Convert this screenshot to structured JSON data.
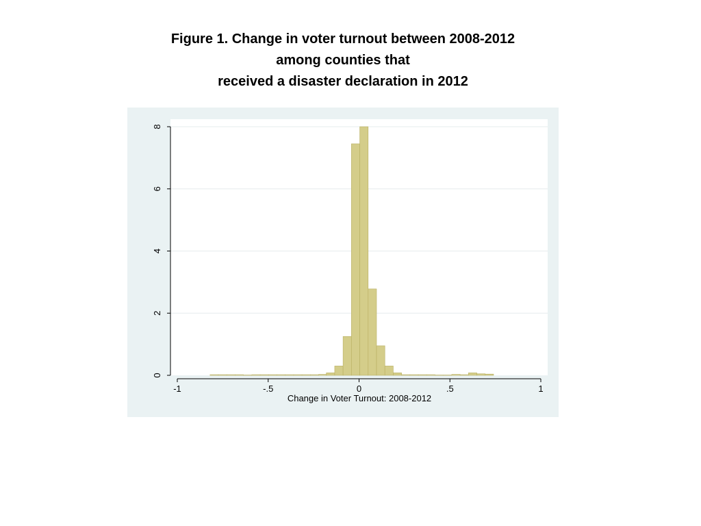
{
  "title_lines": [
    "Figure 1. Change in voter turnout between 2008-2012",
    "among counties that",
    "received a disaster declaration in 2012"
  ],
  "colors": {
    "frame_bg": "#eaf2f3",
    "plot_bg": "#ffffff",
    "bar_fill": "#d4cd8a",
    "bar_stroke": "#b8af62",
    "grid": "#e6eced"
  },
  "chart_data": {
    "type": "bar",
    "title": "Figure 1. Change in voter turnout between 2008-2012 among counties that received a disaster declaration in 2012",
    "xlabel": "Change in Voter Turnout: 2008-2012",
    "ylabel": "",
    "xlim": [
      -1,
      1
    ],
    "ylim": [
      0,
      8
    ],
    "x_ticks": [
      -1,
      -0.5,
      0,
      0.5,
      1
    ],
    "x_tick_labels": [
      "-1",
      "-.5",
      "0",
      ".5",
      "1"
    ],
    "y_ticks": [
      0,
      2,
      4,
      6,
      8
    ],
    "y_tick_labels": [
      "0",
      "2",
      "4",
      "6",
      "8"
    ],
    "grid": true,
    "bin_width": 0.046,
    "bins": [
      {
        "x0": -0.82,
        "value": 0.02
      },
      {
        "x0": -0.774,
        "value": 0.02
      },
      {
        "x0": -0.728,
        "value": 0.02
      },
      {
        "x0": -0.682,
        "value": 0.02
      },
      {
        "x0": -0.636,
        "value": 0.01
      },
      {
        "x0": -0.59,
        "value": 0.02
      },
      {
        "x0": -0.544,
        "value": 0.02
      },
      {
        "x0": -0.498,
        "value": 0.02
      },
      {
        "x0": -0.452,
        "value": 0.02
      },
      {
        "x0": -0.406,
        "value": 0.02
      },
      {
        "x0": -0.36,
        "value": 0.02
      },
      {
        "x0": -0.314,
        "value": 0.02
      },
      {
        "x0": -0.268,
        "value": 0.02
      },
      {
        "x0": -0.222,
        "value": 0.03
      },
      {
        "x0": -0.18,
        "value": 0.08
      },
      {
        "x0": -0.134,
        "value": 0.3
      },
      {
        "x0": -0.088,
        "value": 1.25
      },
      {
        "x0": -0.042,
        "value": 7.45
      },
      {
        "x0": 0.004,
        "value": 8.0
      },
      {
        "x0": 0.05,
        "value": 2.78
      },
      {
        "x0": 0.096,
        "value": 0.95
      },
      {
        "x0": 0.142,
        "value": 0.3
      },
      {
        "x0": 0.188,
        "value": 0.08
      },
      {
        "x0": 0.234,
        "value": 0.02
      },
      {
        "x0": 0.28,
        "value": 0.02
      },
      {
        "x0": 0.326,
        "value": 0.02
      },
      {
        "x0": 0.372,
        "value": 0.02
      },
      {
        "x0": 0.418,
        "value": 0.01
      },
      {
        "x0": 0.464,
        "value": 0.01
      },
      {
        "x0": 0.51,
        "value": 0.03
      },
      {
        "x0": 0.556,
        "value": 0.02
      },
      {
        "x0": 0.602,
        "value": 0.08
      },
      {
        "x0": 0.648,
        "value": 0.05
      },
      {
        "x0": 0.694,
        "value": 0.04
      }
    ]
  }
}
